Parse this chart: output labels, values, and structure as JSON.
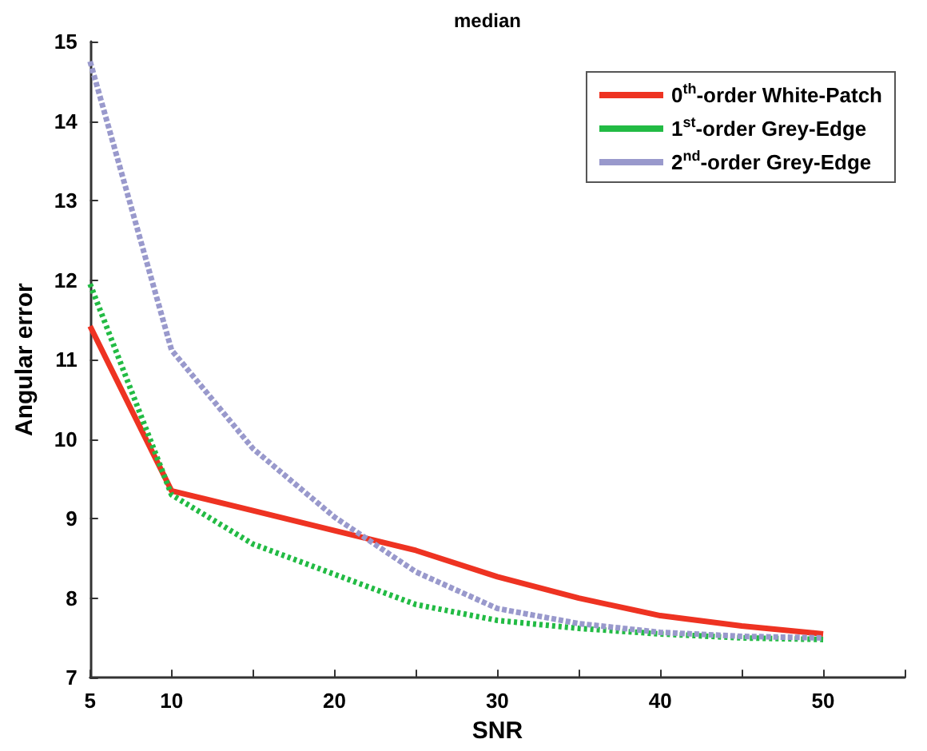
{
  "chart_data": {
    "type": "line",
    "title": "median",
    "xlabel": "SNR",
    "ylabel": "Angular error",
    "x": [
      5,
      10,
      15,
      20,
      25,
      30,
      35,
      40,
      45,
      50
    ],
    "series": [
      {
        "name": "0$^{th}$-order White-Patch",
        "color": "#ee3322",
        "line_style": "solid",
        "values": [
          11.42,
          9.35,
          9.1,
          8.85,
          8.6,
          8.27,
          8.0,
          7.78,
          7.65,
          7.55
        ]
      },
      {
        "name": "1$^{st}$-order Grey-Edge",
        "color": "#22bb44",
        "line_style": "dotted",
        "values": [
          11.95,
          9.3,
          8.68,
          8.3,
          7.92,
          7.72,
          7.62,
          7.55,
          7.5,
          7.48
        ]
      },
      {
        "name": "2$^{nd}$-order Grey-Edge",
        "color": "#9999cc",
        "line_style": "dashed",
        "values": [
          14.75,
          11.12,
          9.88,
          9.02,
          8.33,
          7.87,
          7.68,
          7.57,
          7.52,
          7.5
        ]
      }
    ],
    "xlim": [
      5,
      55
    ],
    "xticks": [
      5,
      10,
      {
        "value": 15,
        "label": null
      },
      20,
      {
        "value": 25,
        "label": null
      },
      30,
      {
        "value": 35,
        "label": null
      },
      40,
      {
        "value": 45,
        "label": null
      },
      50,
      {
        "value": 55,
        "label": null
      }
    ],
    "ylim": [
      7,
      15
    ],
    "yticks": [
      7,
      8,
      9,
      10,
      11,
      12,
      13,
      14,
      15
    ],
    "grid": false,
    "legend": "top right",
    "marker": "none"
  }
}
